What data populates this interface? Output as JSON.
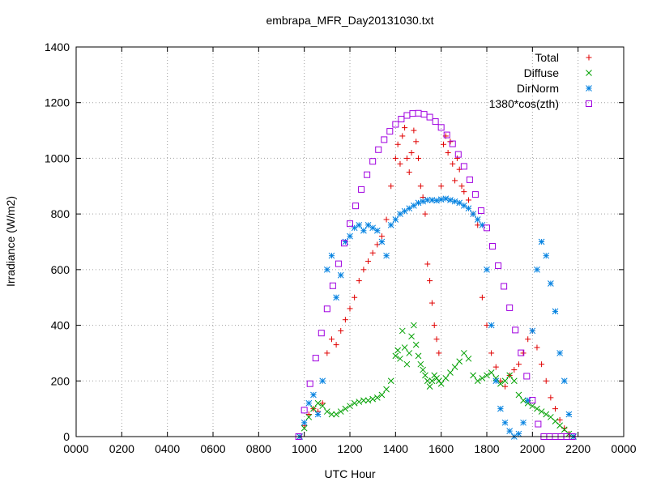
{
  "chart_data": {
    "type": "scatter",
    "title": "embrapa_MFR_Day20131030.txt",
    "xlabel": "UTC Hour",
    "ylabel": "Irradiance (W/m2)",
    "x_tick_labels": [
      "0000",
      "0200",
      "0400",
      "0600",
      "0800",
      "1000",
      "1200",
      "1400",
      "1600",
      "1800",
      "2000",
      "2200",
      "0000"
    ],
    "y_ticks": [
      0,
      200,
      400,
      600,
      800,
      1000,
      1200,
      1400
    ],
    "xlim": [
      0,
      24
    ],
    "ylim": [
      0,
      1400
    ],
    "grid": true,
    "legend_position": "top-right",
    "series": [
      {
        "name": "Total",
        "marker": "plus",
        "color": "#e00000",
        "x": [
          9.8,
          10.0,
          10.2,
          10.4,
          10.6,
          10.8,
          11.0,
          11.2,
          11.4,
          11.6,
          11.8,
          12.0,
          12.2,
          12.4,
          12.6,
          12.8,
          13.0,
          13.2,
          13.4,
          13.6,
          13.8,
          14.0,
          14.1,
          14.2,
          14.3,
          14.4,
          14.5,
          14.6,
          14.7,
          14.8,
          14.9,
          15.0,
          15.1,
          15.2,
          15.3,
          15.4,
          15.5,
          15.6,
          15.7,
          15.8,
          15.9,
          16.0,
          16.1,
          16.2,
          16.3,
          16.4,
          16.5,
          16.6,
          16.7,
          16.8,
          16.9,
          17.0,
          17.2,
          17.4,
          17.6,
          17.8,
          18.0,
          18.2,
          18.4,
          18.6,
          18.8,
          19.0,
          19.2,
          19.4,
          19.6,
          19.8,
          20.0,
          20.2,
          20.4,
          20.6,
          20.8,
          21.0,
          21.2,
          21.4,
          21.6,
          21.8
        ],
        "y": [
          0,
          40,
          80,
          100,
          90,
          120,
          300,
          350,
          330,
          380,
          420,
          460,
          500,
          560,
          600,
          630,
          660,
          690,
          720,
          780,
          900,
          1000,
          1050,
          980,
          1080,
          1110,
          1000,
          950,
          1020,
          1100,
          1060,
          1000,
          900,
          860,
          800,
          620,
          560,
          480,
          400,
          350,
          300,
          900,
          1050,
          1080,
          1020,
          1060,
          980,
          920,
          1000,
          960,
          900,
          880,
          850,
          800,
          760,
          500,
          400,
          300,
          250,
          200,
          180,
          220,
          240,
          260,
          300,
          350,
          380,
          320,
          260,
          200,
          140,
          100,
          60,
          30,
          10,
          0
        ]
      },
      {
        "name": "Diffuse",
        "marker": "x",
        "color": "#00a000",
        "x": [
          9.8,
          10.0,
          10.2,
          10.4,
          10.6,
          10.8,
          11.0,
          11.2,
          11.4,
          11.6,
          11.8,
          12.0,
          12.2,
          12.4,
          12.6,
          12.8,
          13.0,
          13.2,
          13.4,
          13.6,
          13.8,
          14.0,
          14.1,
          14.2,
          14.3,
          14.4,
          14.5,
          14.6,
          14.7,
          14.8,
          14.9,
          15.0,
          15.1,
          15.2,
          15.3,
          15.4,
          15.5,
          15.6,
          15.7,
          15.8,
          15.9,
          16.0,
          16.2,
          16.4,
          16.6,
          16.8,
          17.0,
          17.2,
          17.4,
          17.6,
          17.8,
          18.0,
          18.2,
          18.4,
          18.6,
          18.8,
          19.0,
          19.2,
          19.4,
          19.6,
          19.8,
          20.0,
          20.2,
          20.4,
          20.6,
          20.8,
          21.0,
          21.2,
          21.4,
          21.6,
          21.8
        ],
        "y": [
          0,
          30,
          70,
          100,
          120,
          110,
          90,
          80,
          80,
          90,
          100,
          110,
          120,
          125,
          130,
          130,
          135,
          140,
          150,
          170,
          200,
          290,
          310,
          280,
          380,
          320,
          260,
          300,
          360,
          400,
          330,
          290,
          260,
          240,
          220,
          200,
          180,
          200,
          220,
          210,
          200,
          190,
          210,
          230,
          250,
          270,
          300,
          280,
          220,
          200,
          210,
          220,
          230,
          210,
          190,
          200,
          220,
          200,
          150,
          130,
          120,
          110,
          100,
          90,
          80,
          70,
          55,
          40,
          25,
          10,
          0
        ]
      },
      {
        "name": "DirNorm",
        "marker": "star",
        "color": "#0080e0",
        "x": [
          9.8,
          10.0,
          10.2,
          10.4,
          10.6,
          10.8,
          11.0,
          11.2,
          11.4,
          11.6,
          11.8,
          12.0,
          12.2,
          12.4,
          12.6,
          12.8,
          13.0,
          13.2,
          13.4,
          13.6,
          13.8,
          14.0,
          14.2,
          14.4,
          14.6,
          14.8,
          15.0,
          15.2,
          15.4,
          15.6,
          15.8,
          16.0,
          16.2,
          16.4,
          16.6,
          16.8,
          17.0,
          17.2,
          17.4,
          17.6,
          17.8,
          18.0,
          18.2,
          18.4,
          18.6,
          18.8,
          19.0,
          19.2,
          19.4,
          19.6,
          19.8,
          20.0,
          20.2,
          20.4,
          20.6,
          20.8,
          21.0,
          21.2,
          21.4,
          21.6,
          21.8
        ],
        "y": [
          0,
          50,
          120,
          150,
          80,
          200,
          600,
          650,
          500,
          580,
          700,
          720,
          750,
          760,
          740,
          760,
          750,
          740,
          700,
          650,
          760,
          780,
          800,
          810,
          820,
          830,
          840,
          845,
          850,
          850,
          848,
          852,
          855,
          850,
          845,
          840,
          830,
          820,
          800,
          780,
          760,
          600,
          400,
          200,
          100,
          50,
          20,
          0,
          10,
          50,
          130,
          380,
          600,
          700,
          650,
          550,
          450,
          300,
          200,
          80,
          0
        ]
      },
      {
        "name": "1380*cos(zth)",
        "marker": "square",
        "color": "#a000e0",
        "x": [
          9.75,
          10.0,
          10.25,
          10.5,
          10.75,
          11.0,
          11.25,
          11.5,
          11.75,
          12.0,
          12.25,
          12.5,
          12.75,
          13.0,
          13.25,
          13.5,
          13.75,
          14.0,
          14.25,
          14.5,
          14.75,
          15.0,
          15.25,
          15.5,
          15.75,
          16.0,
          16.25,
          16.5,
          16.75,
          17.0,
          17.25,
          17.5,
          17.75,
          18.0,
          18.25,
          18.5,
          18.75,
          19.0,
          19.25,
          19.5,
          19.75,
          20.0,
          20.25,
          20.5,
          20.75,
          21.0,
          21.25,
          21.5,
          21.75
        ],
        "y": [
          0,
          95,
          190,
          282,
          372,
          459,
          542,
          621,
          695,
          765,
          829,
          888,
          941,
          989,
          1031,
          1067,
          1097,
          1122,
          1141,
          1154,
          1161,
          1162,
          1158,
          1148,
          1132,
          1111,
          1084,
          1052,
          1014,
          971,
          923,
          870,
          812,
          750,
          684,
          614,
          540,
          463,
          383,
          301,
          217,
          131,
          45,
          0,
          0,
          0,
          0,
          0,
          0
        ]
      }
    ]
  }
}
